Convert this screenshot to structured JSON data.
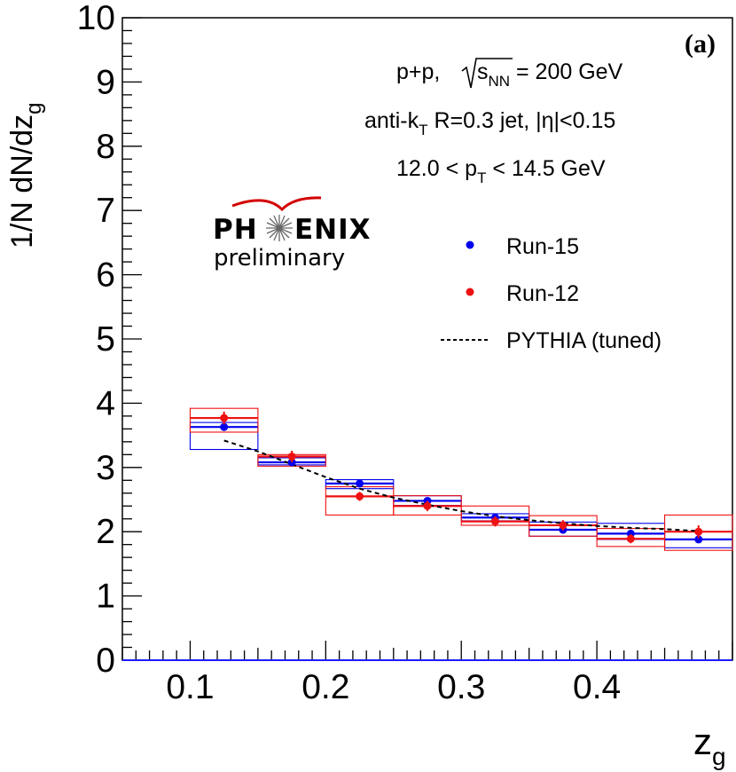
{
  "chart_data": {
    "type": "scatter",
    "xlabel": "z",
    "xlabel_sub": "g",
    "ylabel": "1/N dN/dz",
    "ylabel_sub": "g",
    "xlim": [
      0.05,
      0.5
    ],
    "ylim": [
      0,
      10
    ],
    "x_ticks": [
      0.1,
      0.2,
      0.3,
      0.4
    ],
    "x_tick_labels": [
      "0.1",
      "0.2",
      "0.3",
      "0.4"
    ],
    "y_ticks": [
      0,
      1,
      2,
      3,
      4,
      5,
      6,
      7,
      8,
      9,
      10
    ],
    "y_tick_labels": [
      "0",
      "1",
      "2",
      "3",
      "4",
      "5",
      "6",
      "7",
      "8",
      "9",
      "10"
    ],
    "panel_label": "(a)",
    "annotations": {
      "line1_a": "p+p, ",
      "line1_s": "s",
      "line1_sub": "NN",
      "line1_b": " = 200 GeV",
      "line2_a": "anti-k",
      "line2_sub": "T",
      "line2_b": " R=0.3 jet, |η|<0.15",
      "line3_a": "12.0 < p",
      "line3_sub": "T",
      "line3_b": " < 14.5 GeV"
    },
    "logo": {
      "title_left": "PH",
      "title_right": "ENIX",
      "subtitle": "preliminary"
    },
    "bins": [
      [
        0.1,
        0.15
      ],
      [
        0.15,
        0.2
      ],
      [
        0.2,
        0.25
      ],
      [
        0.25,
        0.3
      ],
      [
        0.3,
        0.35
      ],
      [
        0.35,
        0.4
      ],
      [
        0.4,
        0.45
      ],
      [
        0.45,
        0.5
      ]
    ],
    "series": [
      {
        "name": "Run-15",
        "color": "#0000ee",
        "x": [
          0.125,
          0.175,
          0.225,
          0.275,
          0.325,
          0.375,
          0.425,
          0.475
        ],
        "y": [
          3.63,
          3.08,
          2.75,
          2.48,
          2.22,
          2.03,
          1.97,
          1.88
        ],
        "stat_err": [
          0.06,
          0.05,
          0.04,
          0.04,
          0.04,
          0.04,
          0.04,
          0.05
        ],
        "sys_low": [
          3.28,
          3.04,
          2.67,
          2.41,
          2.17,
          1.93,
          1.88,
          1.75
        ],
        "sys_high": [
          3.7,
          3.15,
          2.81,
          2.56,
          2.28,
          2.15,
          2.13,
          2.0
        ]
      },
      {
        "name": "Run-12",
        "color": "#ee1111",
        "x": [
          0.125,
          0.175,
          0.225,
          0.275,
          0.325,
          0.375,
          0.425,
          0.475
        ],
        "y": [
          3.77,
          3.17,
          2.55,
          2.4,
          2.16,
          2.1,
          1.89,
          2.0
        ],
        "stat_err": [
          0.1,
          0.09,
          0.07,
          0.08,
          0.08,
          0.08,
          0.07,
          0.1
        ],
        "sys_low": [
          3.55,
          3.02,
          2.26,
          2.26,
          2.1,
          1.93,
          1.77,
          1.71
        ],
        "sys_high": [
          3.92,
          3.2,
          2.7,
          2.56,
          2.4,
          2.25,
          2.05,
          2.26
        ]
      },
      {
        "name": "PYTHIA (tuned)",
        "color": "#000000",
        "style": "dashed",
        "x": [
          0.125,
          0.15,
          0.175,
          0.2,
          0.225,
          0.25,
          0.275,
          0.3,
          0.325,
          0.35,
          0.375,
          0.4,
          0.425,
          0.45,
          0.475
        ],
        "y": [
          3.42,
          3.25,
          3.05,
          2.85,
          2.67,
          2.53,
          2.42,
          2.32,
          2.24,
          2.18,
          2.13,
          2.09,
          2.06,
          2.04,
          2.01
        ]
      }
    ]
  }
}
